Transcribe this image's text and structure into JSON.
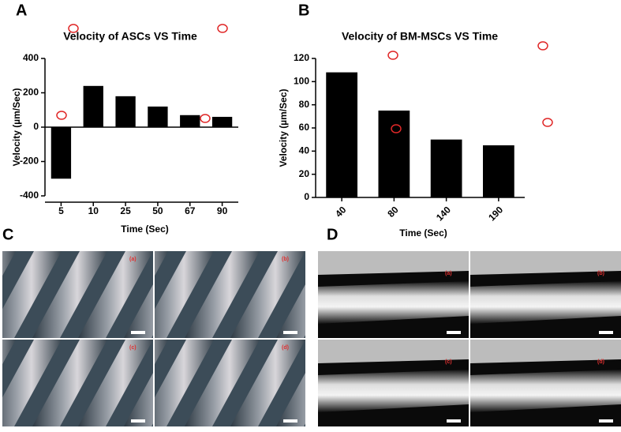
{
  "chart_data": [
    {
      "type": "bar",
      "panel_label": "A",
      "title": "Velocity of ASCs VS Time",
      "y_label": "Velocity (µm/Sec)",
      "x_label": "Time (Sec)",
      "categories": [
        "5",
        "10",
        "25",
        "50",
        "67",
        "90"
      ],
      "values": [
        -300,
        240,
        180,
        120,
        70,
        60
      ],
      "color": "#000000",
      "ylim": [
        -400,
        400
      ],
      "yticks": [
        -400,
        -200,
        0,
        200,
        400
      ],
      "grid": false
    },
    {
      "type": "bar",
      "panel_label": "B",
      "title": "Velocity of BM-MSCs VS Time",
      "y_label": "Velocity (µm/Sec)",
      "x_label": "Time (Sec)",
      "categories": [
        "40",
        "80",
        "140",
        "190"
      ],
      "values": [
        108,
        75,
        50,
        45
      ],
      "color": "#000000",
      "ylim": [
        0,
        120
      ],
      "yticks": [
        0,
        20,
        40,
        60,
        80,
        100,
        120
      ],
      "grid": false
    }
  ],
  "images": [
    {
      "panel_label": "C",
      "frames": [
        "(a)",
        "(b)",
        "(c)",
        "(d)"
      ]
    },
    {
      "panel_label": "D",
      "frames": [
        "(a)",
        "(b)",
        "(c)",
        "(d)"
      ]
    }
  ]
}
